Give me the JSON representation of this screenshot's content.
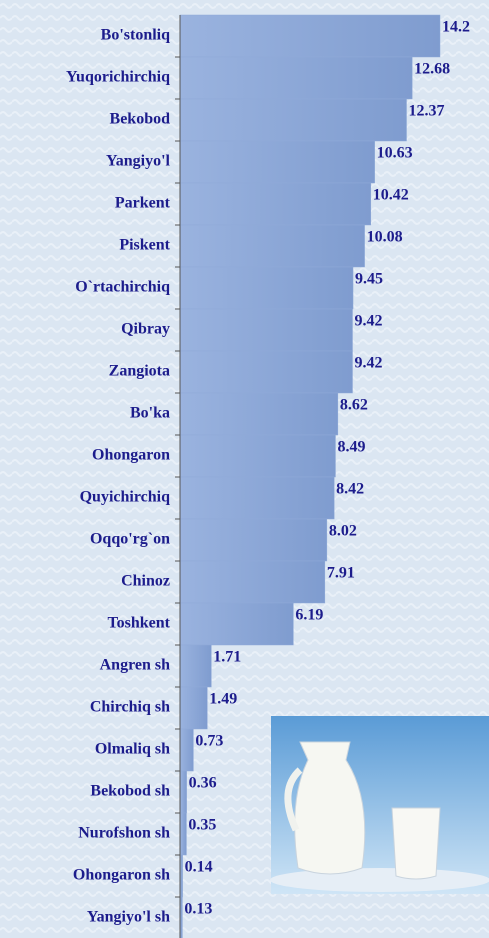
{
  "chart_data": {
    "type": "step-bar",
    "categories": [
      "Bo'stonliq",
      "Yuqorichirchiq",
      "Bekobod",
      "Yangiyo'l",
      "Parkent",
      "Piskent",
      "O`rtachirchiq",
      "Qibray",
      "Zangiota",
      "Bo'ka",
      "Ohongaron",
      "Quyichirchiq",
      "Oqqo'rg`on",
      "Chinoz",
      "Toshkent",
      "Angren sh",
      "Chirchiq sh",
      "Olmaliq sh",
      "Bekobod sh",
      "Nurofshon sh",
      "Ohongaron sh",
      "Yangiyo'l sh"
    ],
    "values": [
      14.2,
      12.68,
      12.37,
      10.63,
      10.42,
      10.08,
      9.45,
      9.42,
      9.42,
      8.62,
      8.49,
      8.42,
      8.02,
      7.91,
      6.19,
      1.71,
      1.49,
      0.73,
      0.36,
      0.35,
      0.14,
      0.13
    ],
    "color": "#8fa9d8"
  }
}
